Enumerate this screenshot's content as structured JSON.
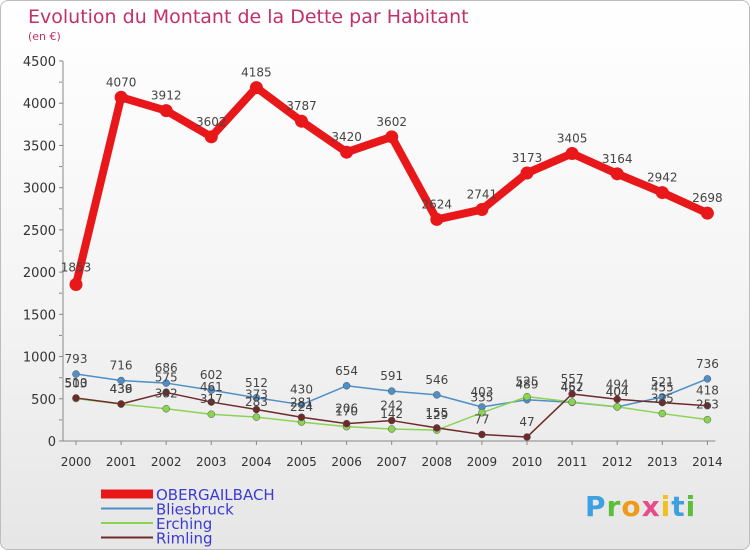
{
  "header": {
    "title": "Evolution du Montant de la Dette par Habitant",
    "subtitle": "(en €)"
  },
  "logo": {
    "text": "Proxiti"
  },
  "colors": {
    "title": "#c2306b",
    "OBERGAILBACH": "#e8171a",
    "Bliesbruck": "#4f8fc8",
    "Erching": "#8bd453",
    "Rimling": "#6e2a2a",
    "axis": "#888888",
    "legendText": "#3b3bd1"
  },
  "chart_data": {
    "type": "line",
    "title": "Evolution du Montant de la Dette par Habitant",
    "ylabel": "(en €)",
    "xlabel": "",
    "x": [
      "2000",
      "2001",
      "2002",
      "2003",
      "2004",
      "2005",
      "2006",
      "2007",
      "2008",
      "2009",
      "2010",
      "2011",
      "2012",
      "2013",
      "2014"
    ],
    "ylim": [
      0,
      4500
    ],
    "yticks": [
      0,
      500,
      1000,
      1500,
      2000,
      2500,
      3000,
      3500,
      4000,
      4500
    ],
    "grid": false,
    "legend_position": "bottom-left",
    "series": [
      {
        "name": "OBERGAILBACH",
        "values": [
          1853,
          4070,
          3912,
          3602,
          4185,
          3787,
          3420,
          3602,
          2624,
          2741,
          3173,
          3405,
          3164,
          2942,
          2698
        ]
      },
      {
        "name": "Bliesbruck",
        "values": [
          793,
          716,
          686,
          602,
          512,
          430,
          654,
          591,
          546,
          403,
          489,
          457,
          404,
          521,
          736
        ]
      },
      {
        "name": "Erching",
        "values": [
          503,
          436,
          382,
          317,
          283,
          224,
          170,
          142,
          129,
          335,
          525,
          462,
          404,
          325,
          253
        ]
      },
      {
        "name": "Rimling",
        "values": [
          510,
          439,
          575,
          461,
          373,
          281,
          206,
          242,
          155,
          77,
          47,
          557,
          494,
          455,
          418
        ]
      }
    ]
  }
}
